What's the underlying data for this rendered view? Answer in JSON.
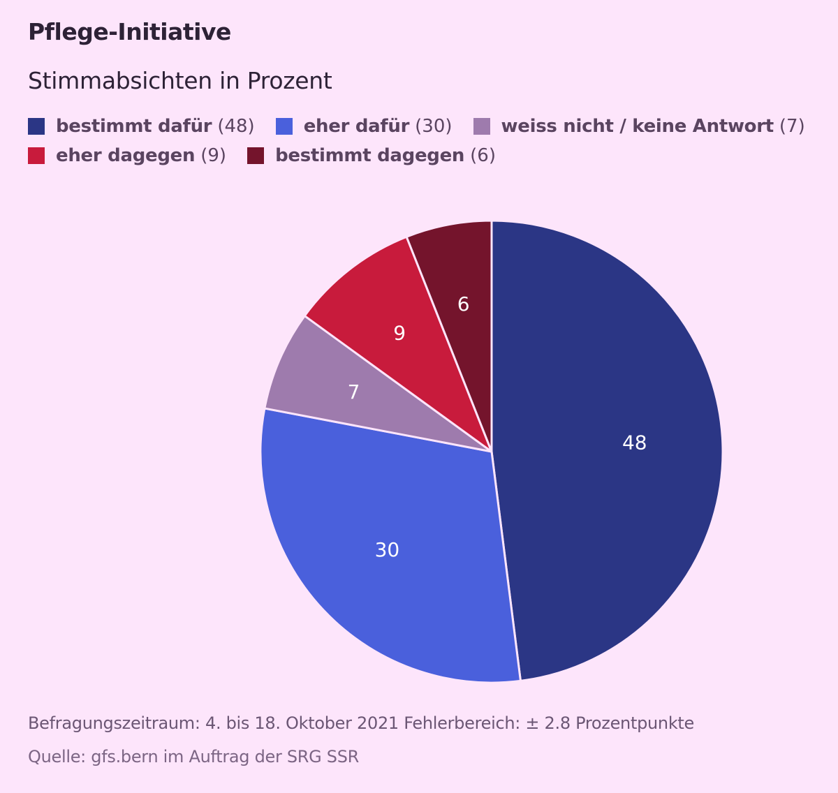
{
  "header": {
    "title": "Pflege-Initiative",
    "subtitle": "Stimmabsichten in Prozent"
  },
  "chart_data": {
    "type": "pie",
    "title": "Pflege-Initiative",
    "subtitle": "Stimmabsichten in Prozent",
    "unit": "Prozent",
    "legend_position": "top",
    "slices": [
      {
        "label": "bestimmt dafür",
        "value": 48,
        "value_text": "48",
        "legend_value": "(48)",
        "color": "#2b3685",
        "label_color": "#ffffff"
      },
      {
        "label": "eher dafür",
        "value": 30,
        "value_text": "30",
        "legend_value": "(30)",
        "color": "#4a60dc",
        "label_color": "#ffffff"
      },
      {
        "label": "weiss nicht / keine Antwort",
        "value": 7,
        "value_text": "7",
        "legend_value": "(7)",
        "color": "#9e7bad",
        "label_color": "#ffffff"
      },
      {
        "label": "eher dagegen",
        "value": 9,
        "value_text": "9",
        "legend_value": "(9)",
        "color": "#c81b3c",
        "label_color": "#ffffff"
      },
      {
        "label": "bestimmt dagegen",
        "value": 6,
        "value_text": "6",
        "legend_value": "(6)",
        "color": "#74142c",
        "label_color": "#ffffff"
      }
    ]
  },
  "footer": {
    "period": "Befragungszeitraum: 4. bis 18. Oktober 2021 Fehlerbereich: ± 2.8 Prozentpunkte",
    "source": "Quelle: gfs.bern im Auftrag der SRG SSR"
  },
  "colors": {
    "background": "#fde5fb",
    "slice_separator": "#fde5fb"
  }
}
